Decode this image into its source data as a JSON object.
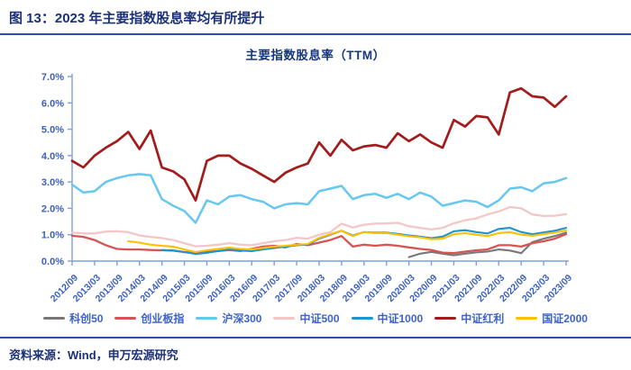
{
  "header": {
    "title": "图 13：2023 年主要指数股息率均有所提升"
  },
  "footer": {
    "source": "资料来源：Wind，申万宏源研究"
  },
  "chart_data": {
    "type": "line",
    "title": "主要指数股息率（TTM）",
    "ylabel": "dividend yield (TTM)",
    "ylim": [
      0,
      7
    ],
    "ytick_step": 1,
    "ytick_labels": [
      "0.0%",
      "1.0%",
      "2.0%",
      "3.0%",
      "4.0%",
      "5.0%",
      "6.0%",
      "7.0%"
    ],
    "grid": false,
    "legend_position": "bottom",
    "axis_color": "#7fa0dc",
    "label_color": "#3b5fc0",
    "x_tick_labels": [
      "2012/09",
      "2013/03",
      "2013/09",
      "2014/03",
      "2014/09",
      "2015/03",
      "2015/09",
      "2016/03",
      "2016/09",
      "2017/03",
      "2017/09",
      "2018/03",
      "2018/09",
      "2019/03",
      "2019/09",
      "2020/03",
      "2020/09",
      "2021/03",
      "2021/09",
      "2022/03",
      "2022/09",
      "2023/03",
      "2023/09"
    ],
    "points_per_tick": 2,
    "n_points": 45,
    "series": [
      {
        "name": "科创50",
        "color": "#787878",
        "width": 2.1,
        "values": [
          null,
          null,
          null,
          null,
          null,
          null,
          null,
          null,
          null,
          null,
          null,
          null,
          null,
          null,
          null,
          null,
          null,
          null,
          null,
          null,
          null,
          null,
          null,
          null,
          null,
          null,
          null,
          null,
          null,
          null,
          0.15,
          0.28,
          0.35,
          0.28,
          0.22,
          0.28,
          0.33,
          0.36,
          0.44,
          0.4,
          0.3,
          0.72,
          0.85,
          0.95,
          1.08
        ]
      },
      {
        "name": "创业板指",
        "color": "#d45554",
        "width": 2.3,
        "values": [
          0.96,
          0.92,
          0.8,
          0.6,
          0.46,
          0.44,
          0.44,
          0.42,
          0.41,
          0.4,
          0.34,
          0.31,
          0.35,
          0.38,
          0.42,
          0.38,
          0.46,
          0.55,
          0.58,
          0.52,
          0.65,
          0.6,
          0.7,
          0.8,
          0.95,
          0.55,
          0.62,
          0.58,
          0.62,
          0.58,
          0.52,
          0.46,
          0.42,
          0.32,
          0.3,
          0.36,
          0.41,
          0.44,
          0.6,
          0.6,
          0.55,
          0.68,
          0.75,
          0.85,
          1.02
        ]
      },
      {
        "name": "沪深300",
        "color": "#66c7f0",
        "width": 2.5,
        "values": [
          2.9,
          2.6,
          2.65,
          3.0,
          3.15,
          3.25,
          3.3,
          3.25,
          2.35,
          2.1,
          1.9,
          1.45,
          2.3,
          2.15,
          2.45,
          2.5,
          2.35,
          2.25,
          2.0,
          2.15,
          2.2,
          2.15,
          2.65,
          2.75,
          2.85,
          2.35,
          2.5,
          2.55,
          2.4,
          2.55,
          2.35,
          2.6,
          2.45,
          2.1,
          2.2,
          2.3,
          2.25,
          2.05,
          2.3,
          2.75,
          2.8,
          2.65,
          2.95,
          3.0,
          3.15
        ]
      },
      {
        "name": "中证500",
        "color": "#f4c6c8",
        "width": 2.3,
        "values": [
          1.08,
          1.05,
          1.05,
          1.12,
          1.13,
          1.1,
          0.97,
          0.92,
          0.87,
          0.8,
          0.68,
          0.56,
          0.58,
          0.62,
          0.68,
          0.62,
          0.6,
          0.68,
          0.75,
          0.8,
          0.88,
          0.85,
          1.0,
          1.1,
          1.42,
          1.27,
          1.38,
          1.42,
          1.43,
          1.45,
          1.32,
          1.26,
          1.2,
          1.26,
          1.43,
          1.55,
          1.62,
          1.77,
          1.88,
          2.05,
          2.0,
          1.77,
          1.71,
          1.72,
          1.78
        ]
      },
      {
        "name": "中证1000",
        "color": "#1d94d2",
        "width": 2.1,
        "values": [
          null,
          null,
          null,
          null,
          null,
          null,
          null,
          null,
          0.42,
          0.4,
          0.34,
          0.27,
          0.31,
          0.38,
          0.44,
          0.4,
          0.38,
          0.44,
          0.5,
          0.55,
          0.6,
          0.63,
          0.85,
          1.0,
          1.15,
          0.97,
          1.1,
          1.08,
          1.08,
          1.03,
          0.97,
          0.93,
          0.87,
          0.93,
          1.13,
          1.17,
          1.1,
          1.05,
          1.22,
          1.26,
          1.1,
          1.02,
          1.09,
          1.15,
          1.26
        ]
      },
      {
        "name": "中证红利",
        "color": "#a21c1c",
        "width": 2.7,
        "values": [
          3.8,
          3.55,
          4.0,
          4.3,
          4.55,
          4.9,
          4.25,
          4.95,
          3.55,
          3.4,
          3.1,
          2.3,
          3.8,
          4.0,
          4.0,
          3.7,
          3.5,
          3.25,
          3.0,
          3.35,
          3.55,
          3.7,
          4.5,
          4.0,
          4.6,
          4.2,
          4.35,
          4.4,
          4.3,
          4.85,
          4.55,
          4.8,
          4.5,
          4.3,
          5.35,
          5.1,
          5.5,
          5.45,
          4.8,
          6.4,
          6.55,
          6.25,
          6.2,
          5.85,
          6.25
        ]
      },
      {
        "name": "国证2000",
        "color": "#ffc000",
        "width": 2.1,
        "values": [
          null,
          null,
          null,
          null,
          null,
          0.75,
          0.7,
          0.62,
          0.58,
          0.55,
          0.44,
          0.34,
          0.41,
          0.46,
          0.51,
          0.46,
          0.44,
          0.5,
          0.55,
          0.58,
          0.62,
          0.65,
          0.88,
          1.02,
          1.15,
          0.95,
          1.1,
          1.06,
          1.06,
          1.0,
          0.94,
          0.9,
          0.83,
          0.85,
          1.02,
          1.06,
          1.0,
          0.95,
          1.06,
          1.1,
          1.0,
          0.96,
          1.02,
          1.08,
          1.16
        ]
      }
    ]
  }
}
